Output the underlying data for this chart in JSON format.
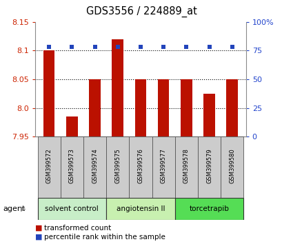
{
  "title": "GDS3556 / 224889_at",
  "samples": [
    "GSM399572",
    "GSM399573",
    "GSM399574",
    "GSM399575",
    "GSM399576",
    "GSM399577",
    "GSM399578",
    "GSM399579",
    "GSM399580"
  ],
  "red_values": [
    8.1,
    7.985,
    8.05,
    8.12,
    8.05,
    8.05,
    8.05,
    8.025,
    8.05
  ],
  "blue_values": [
    78,
    78,
    78,
    78,
    78,
    78,
    78,
    78,
    78
  ],
  "ylim_left": [
    7.95,
    8.15
  ],
  "ylim_right": [
    0,
    100
  ],
  "yticks_left": [
    7.95,
    8.0,
    8.05,
    8.1,
    8.15
  ],
  "yticks_right": [
    0,
    25,
    50,
    75,
    100
  ],
  "ytick_labels_right": [
    "0",
    "25",
    "50",
    "75",
    "100%"
  ],
  "groups": [
    {
      "label": "solvent control",
      "indices": [
        0,
        1,
        2
      ],
      "color": "#c8eec8"
    },
    {
      "label": "angiotensin II",
      "indices": [
        3,
        4,
        5
      ],
      "color": "#c8f0b0"
    },
    {
      "label": "torcetrapib",
      "indices": [
        6,
        7,
        8
      ],
      "color": "#55dd55"
    }
  ],
  "agent_label": "agent",
  "red_color": "#bb1100",
  "blue_color": "#2244bb",
  "bar_width": 0.5,
  "legend_red": "transformed count",
  "legend_blue": "percentile rank within the sample",
  "background_color": "#ffffff",
  "plot_bg": "#ffffff",
  "tick_label_color_left": "#cc2200",
  "tick_label_color_right": "#2244cc",
  "sample_box_color": "#cccccc",
  "grid_linestyle": "dotted",
  "grid_color": "#000000",
  "grid_linewidth": 0.8
}
